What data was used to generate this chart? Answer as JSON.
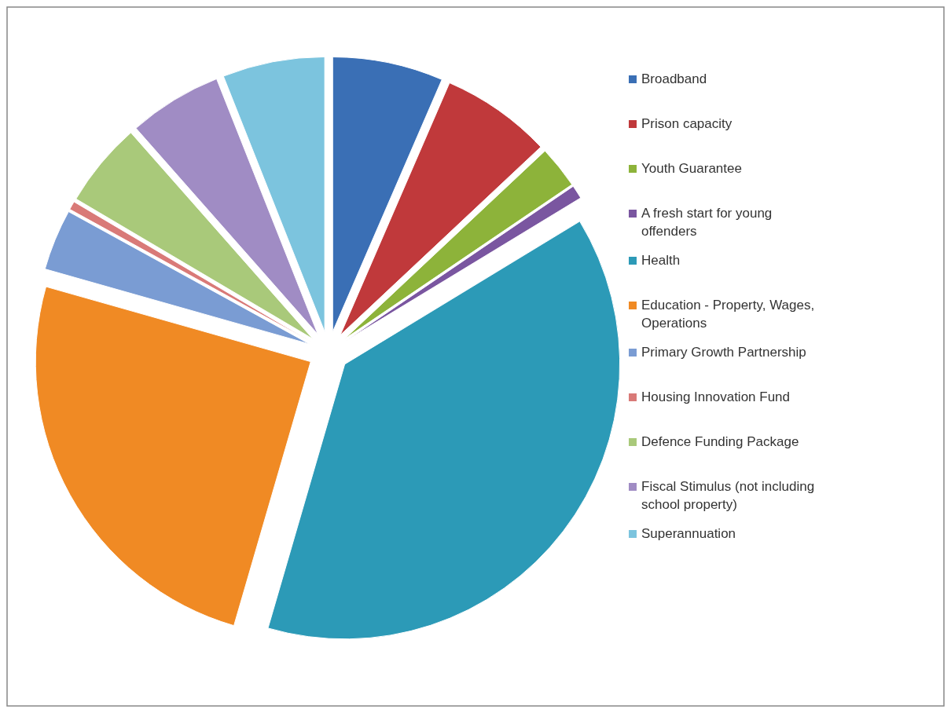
{
  "chart_data": {
    "type": "pie",
    "categories": [
      "Broadband",
      "Prison capacity",
      "Youth Guarantee",
      "A fresh start for young offenders",
      "Health",
      "Education - Property, Wages, Operations",
      "Primary Growth Partnership",
      "Housing Innovation Fund",
      "Defence Funding Package",
      "Fiscal Stimulus (not including school property)",
      "Superannuation"
    ],
    "values": [
      6.5,
      6.5,
      2.5,
      0.8,
      38.2,
      24.9,
      3.6,
      0.5,
      5,
      5.5,
      6
    ],
    "colors": [
      "#3a6fb5",
      "#c0393b",
      "#8db33a",
      "#7a56a0",
      "#2c9ab7",
      "#f08a24",
      "#7a9cd3",
      "#d97a78",
      "#a9c97a",
      "#a08cc4",
      "#7cc4de"
    ],
    "legend": "right"
  }
}
